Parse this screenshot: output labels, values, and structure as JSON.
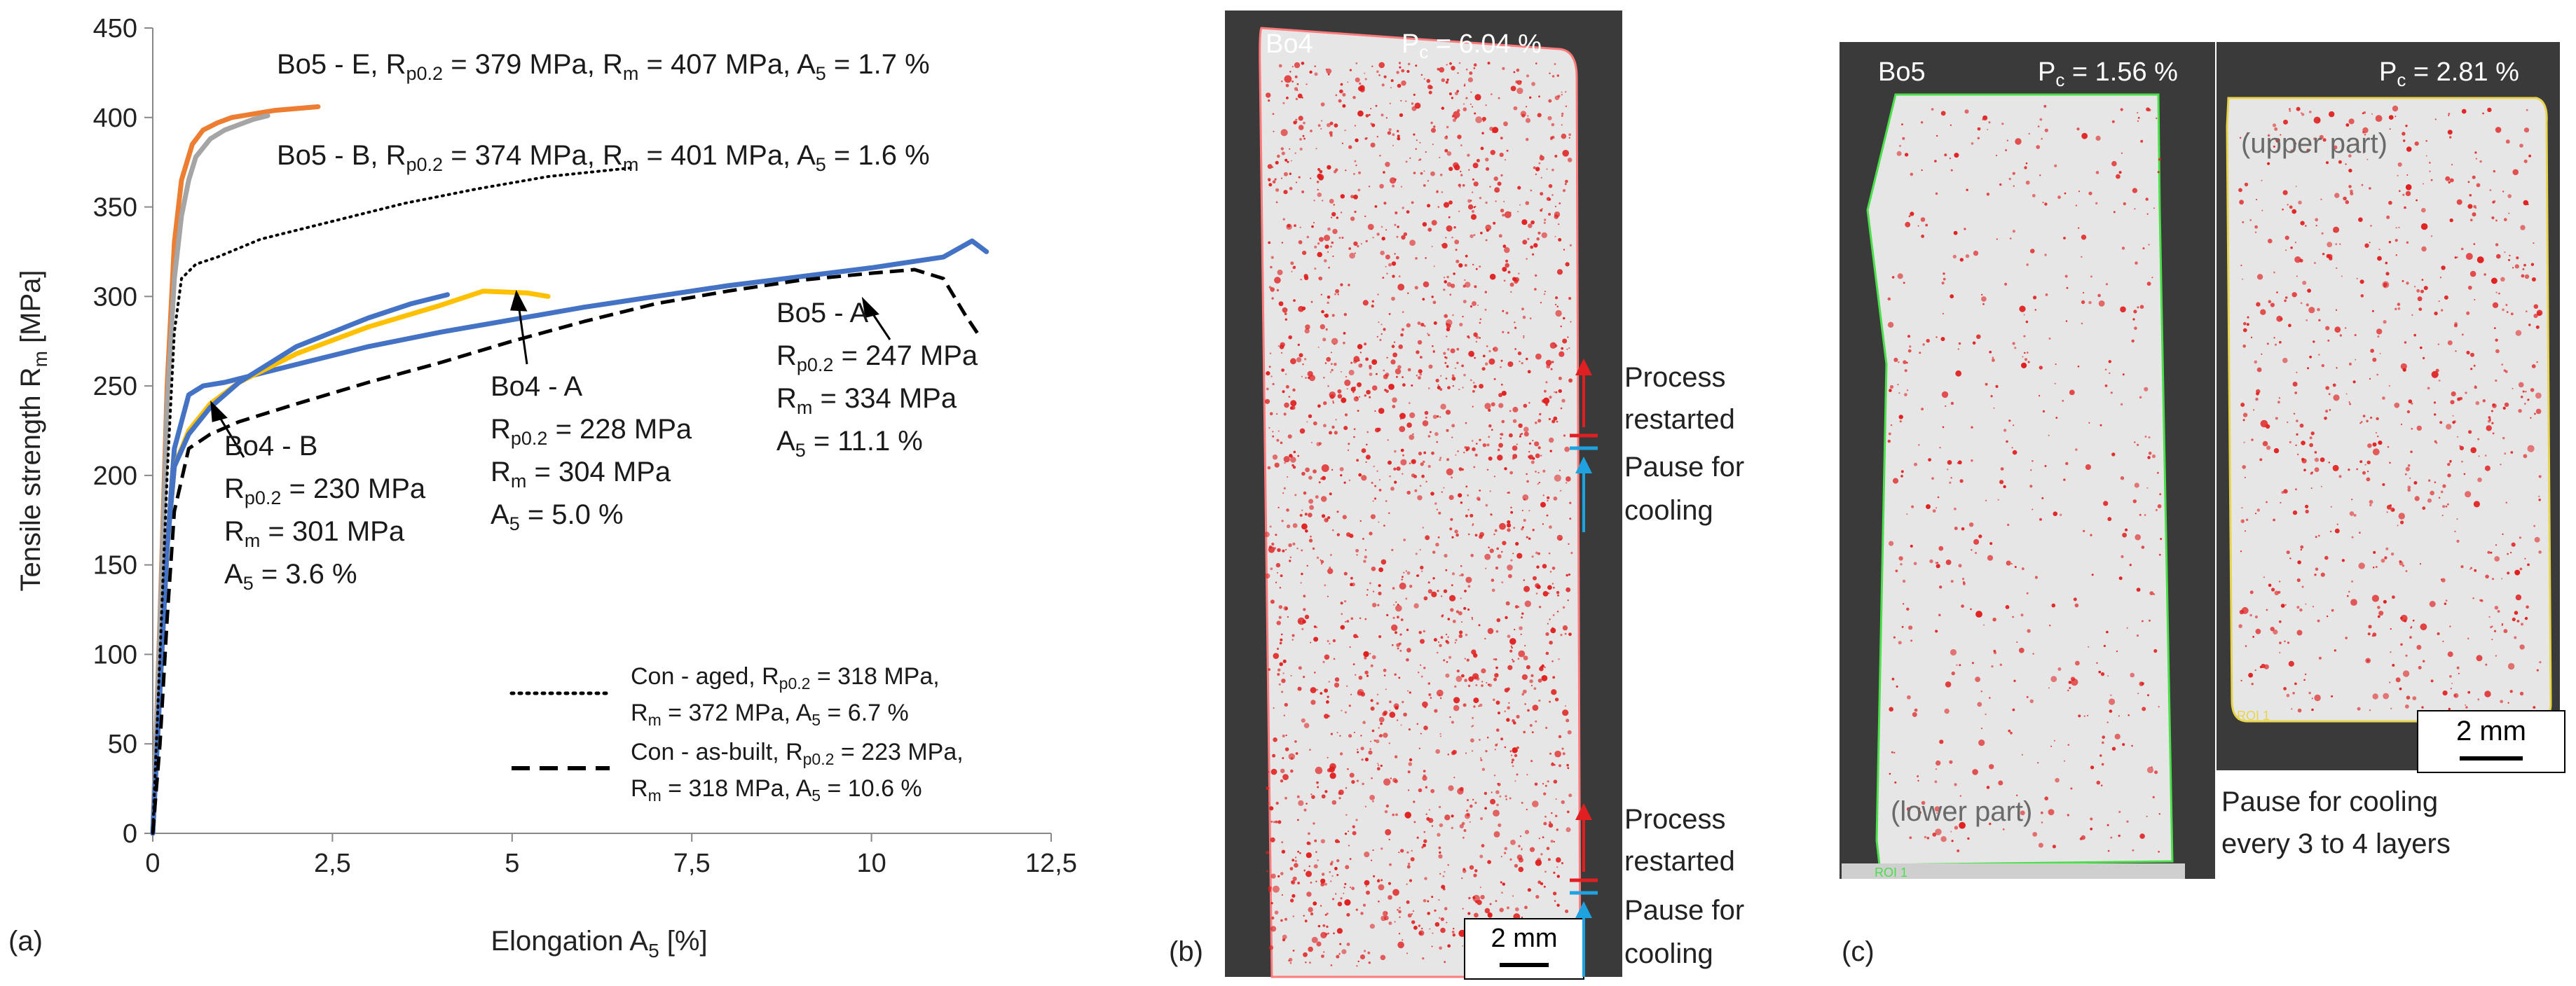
{
  "chart_data": {
    "type": "line",
    "xlabel": "Elongation A",
    "xlabel_sub": "5",
    "xlabel_unit": " [%]",
    "ylabel": "Tensile strength R",
    "ylabel_sub": "m",
    "ylabel_unit": " [MPa]",
    "xlim": [
      0,
      12.5
    ],
    "ylim": [
      0,
      450
    ],
    "xticks": [
      0,
      2.5,
      5,
      7.5,
      10,
      12.5
    ],
    "xtick_labels": [
      "0",
      "2,5",
      "5",
      "7,5",
      "10",
      "12,5"
    ],
    "yticks": [
      0,
      50,
      100,
      150,
      200,
      250,
      300,
      350,
      400,
      450
    ],
    "ytick_labels": [
      "0",
      "50",
      "100",
      "150",
      "200",
      "250",
      "300",
      "350",
      "400",
      "450"
    ],
    "grid": false,
    "legend_position": "bottom-right",
    "series": [
      {
        "key": "bo5e",
        "color": "#ED7D31",
        "style": "solid",
        "x": [
          0,
          0.1,
          0.2,
          0.3,
          0.4,
          0.55,
          0.7,
          0.9,
          1.1,
          1.4,
          1.7,
          2.0,
          2.3
        ],
        "y": [
          0,
          120,
          250,
          330,
          365,
          385,
          393,
          397,
          400,
          402,
          404,
          405,
          406
        ]
      },
      {
        "key": "bo5b",
        "color": "#A5A5A5",
        "style": "solid",
        "x": [
          0,
          0.1,
          0.2,
          0.3,
          0.4,
          0.5,
          0.6,
          0.8,
          1.0,
          1.2,
          1.4,
          1.6
        ],
        "y": [
          0,
          115,
          240,
          310,
          345,
          365,
          378,
          388,
          393,
          396,
          399,
          401
        ]
      },
      {
        "key": "bo5a",
        "color": "#4472C4",
        "style": "solid",
        "x": [
          0,
          0.1,
          0.2,
          0.3,
          0.5,
          0.7,
          1.0,
          2.0,
          3.0,
          4.0,
          5.0,
          6.0,
          7.0,
          8.0,
          9.0,
          10.0,
          11.0,
          11.4,
          11.6
        ],
        "y": [
          0,
          80,
          160,
          215,
          245,
          250,
          252,
          262,
          272,
          280,
          287,
          294,
          300,
          306,
          311,
          316,
          322,
          331,
          325
        ]
      },
      {
        "key": "bo4a",
        "color": "#FFC000",
        "style": "solid",
        "x": [
          0,
          0.1,
          0.2,
          0.3,
          0.5,
          0.8,
          1.2,
          2.0,
          3.0,
          4.0,
          4.6,
          5.2,
          5.5
        ],
        "y": [
          0,
          80,
          160,
          205,
          225,
          240,
          252,
          268,
          283,
          295,
          303,
          302,
          300
        ]
      },
      {
        "key": "bo4b",
        "color": "#4472C4",
        "style": "solid",
        "x": [
          0,
          0.1,
          0.2,
          0.3,
          0.5,
          0.8,
          1.2,
          2.0,
          3.0,
          3.6,
          4.1
        ],
        "y": [
          0,
          80,
          160,
          205,
          223,
          238,
          252,
          272,
          288,
          296,
          301
        ]
      },
      {
        "key": "con_aged",
        "color": "#000000",
        "style": "dotted",
        "x": [
          0,
          0.1,
          0.2,
          0.3,
          0.4,
          0.6,
          0.9,
          1.5,
          2.5,
          3.5,
          4.5,
          5.5,
          6.7
        ],
        "y": [
          0,
          100,
          200,
          280,
          310,
          318,
          322,
          332,
          342,
          352,
          360,
          367,
          372
        ]
      },
      {
        "key": "con_asbuilt",
        "color": "#000000",
        "style": "dashed",
        "x": [
          0,
          0.1,
          0.2,
          0.3,
          0.5,
          0.8,
          1.2,
          2.0,
          3.0,
          4.0,
          5.0,
          6.0,
          7.0,
          8.0,
          9.0,
          10.0,
          10.6,
          11.0,
          11.3,
          11.5
        ],
        "y": [
          0,
          50,
          120,
          180,
          215,
          223,
          230,
          240,
          252,
          263,
          275,
          286,
          296,
          303,
          309,
          313,
          315,
          310,
          290,
          278
        ]
      }
    ],
    "annotations": [
      {
        "key": "bo5e_label",
        "lines": [
          "Bo5 - E, R|p0.2| = 379 MPa, R|m| = 407 MPa, A|5| = 1.7 %"
        ]
      },
      {
        "key": "bo5b_label",
        "lines": [
          "Bo5 - B, R|p0.2| = 374 MPa, R|m| = 401 MPa, A|5| = 1.6 %"
        ]
      },
      {
        "key": "bo5a_label",
        "lines": [
          "Bo5 - A",
          "R|p0.2| = 247 MPa",
          "R|m| = 334 MPa",
          "A|5| = 11.1 %"
        ]
      },
      {
        "key": "bo4a_label",
        "lines": [
          "Bo4 - A",
          "R|p0.2| = 228 MPa",
          "R|m| = 304 MPa",
          "A|5| = 5.0 %"
        ]
      },
      {
        "key": "bo4b_label",
        "lines": [
          "Bo4 - B",
          "R|p0.2| = 230 MPa",
          "R|m| = 301 MPa",
          "A|5| = 3.6 %"
        ]
      }
    ],
    "legend": [
      {
        "style": "dotted",
        "lines": [
          "Con - aged, R|p0.2| = 318 MPa,",
          "R|m| = 372 MPa, A|5| = 6.7 %"
        ]
      },
      {
        "style": "dashed",
        "lines": [
          "Con - as-built, R|p0.2| = 223 MPa,",
          "R|m| = 318 MPa, A|5| = 10.6 %"
        ]
      }
    ]
  },
  "panel_labels": {
    "a": "(a)",
    "b": "(b)",
    "c": "(c)"
  },
  "panel_b": {
    "sample": "Bo4",
    "porosity": "P|c| = 6.04 %",
    "scalebar": "2 mm",
    "notes": [
      {
        "key": "upper",
        "restarted": [
          "Process",
          "restarted"
        ],
        "pause": [
          "Pause for",
          "cooling"
        ]
      },
      {
        "key": "lower",
        "restarted": [
          "Process",
          "restarted"
        ],
        "pause": [
          "Pause for",
          "cooling"
        ]
      }
    ],
    "colors": {
      "pore": "#E02020",
      "arrow_restart": "#E02020",
      "arrow_pause": "#1FA3E0",
      "background": "#3a3a3a",
      "specimen": "#e6e6e6"
    }
  },
  "panel_c": {
    "sample": "Bo5",
    "porosity_lower": "P|c| = 1.56 %",
    "porosity_upper": "P|c| = 2.81 %",
    "label_lower": "(lower part)",
    "label_upper": "(upper part)",
    "scalebar": "2 mm",
    "note": [
      "Pause for cooling",
      "every 3 to 4 layers"
    ],
    "roi_labels": [
      "ROI 1",
      "ROI 1"
    ],
    "colors": {
      "outline_lower": "#49E049",
      "outline_upper": "#E8D44A"
    }
  }
}
